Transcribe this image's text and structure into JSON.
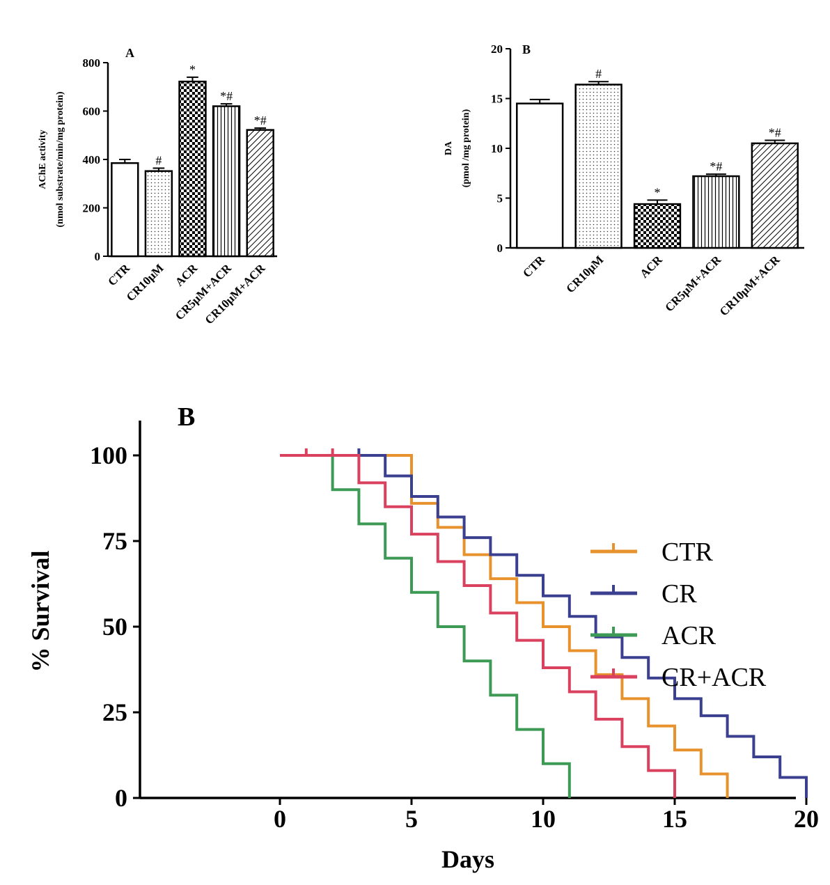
{
  "chart_data": [
    {
      "type": "bar",
      "panel_label": "A",
      "categories": [
        "CTR",
        "CR10μM",
        "ACR",
        "CR5μM+ACR",
        "CR10μM+ACR"
      ],
      "values": [
        385,
        352,
        722,
        620,
        522
      ],
      "errors": [
        15,
        12,
        18,
        10,
        8
      ],
      "annotations": [
        "",
        "#",
        "*",
        "*#",
        "*#"
      ],
      "patterns": [
        "solid",
        "dots",
        "checker",
        "vlines",
        "diag"
      ],
      "ylabel_line1": "AChE activity",
      "ylabel_line2": "(nmol substrate/min/mg protein)",
      "ylim": [
        0,
        800
      ],
      "yticks": [
        0,
        200,
        400,
        600,
        800
      ]
    },
    {
      "type": "bar",
      "panel_label": "B",
      "categories": [
        "CTR",
        "CR10μM",
        "ACR",
        "CR5μM+ACR",
        "CR10μM+ACR"
      ],
      "values": [
        14.5,
        16.4,
        4.4,
        7.2,
        10.5
      ],
      "errors": [
        0.4,
        0.3,
        0.4,
        0.2,
        0.3
      ],
      "annotations": [
        "",
        "#",
        "*",
        "*#",
        "*#"
      ],
      "patterns": [
        "solid",
        "dots",
        "checker",
        "vlines",
        "diag"
      ],
      "ylabel_line1": "DA",
      "ylabel_line2": "(pmol /mg protein)",
      "ylim": [
        0,
        20
      ],
      "yticks": [
        0,
        5,
        10,
        15,
        20
      ]
    },
    {
      "type": "line",
      "subtype": "kaplan-meier",
      "panel_label": "B",
      "xlabel": "Days",
      "ylabel": "% Survival",
      "xlim": [
        0,
        25
      ],
      "ylim": [
        0,
        100
      ],
      "xticks": [
        0,
        5,
        10,
        15,
        20,
        25
      ],
      "yticks": [
        0,
        25,
        50,
        75,
        100
      ],
      "legend_position": "right",
      "series": [
        {
          "name": "CTR",
          "color": "#e8922e",
          "x": [
            0,
            5,
            6,
            7,
            8,
            9,
            10,
            11,
            12,
            13,
            14,
            15,
            16,
            17
          ],
          "y": [
            100,
            86,
            79,
            71,
            64,
            57,
            50,
            43,
            36,
            29,
            21,
            14,
            7,
            0
          ],
          "censor_x": [
            5
          ],
          "censor_y": [
            93
          ]
        },
        {
          "name": "CR",
          "color": "#3b3f8f",
          "x": [
            0,
            4,
            5,
            6,
            7,
            8,
            9,
            10,
            11,
            12,
            13,
            14,
            15,
            16,
            17,
            18,
            19,
            20
          ],
          "y": [
            100,
            94,
            88,
            82,
            76,
            71,
            65,
            59,
            53,
            47,
            41,
            35,
            29,
            24,
            18,
            12,
            6,
            0
          ],
          "censor_x": [
            3
          ],
          "censor_y": [
            100
          ]
        },
        {
          "name": "ACR",
          "color": "#3d9a55",
          "x": [
            0,
            2,
            3,
            4,
            5,
            6,
            7,
            8,
            9,
            10,
            11
          ],
          "y": [
            100,
            90,
            80,
            70,
            60,
            50,
            40,
            30,
            20,
            10,
            0
          ],
          "censor_x": [],
          "censor_y": []
        },
        {
          "name": "CR+ACR",
          "color": "#d9415e",
          "x": [
            0,
            3,
            4,
            5,
            6,
            7,
            8,
            9,
            10,
            11,
            12,
            13,
            14,
            15
          ],
          "y": [
            100,
            92,
            85,
            77,
            69,
            62,
            54,
            46,
            38,
            31,
            23,
            15,
            8,
            0
          ],
          "censor_x": [
            1,
            2
          ],
          "censor_y": [
            100,
            100
          ]
        }
      ]
    }
  ]
}
